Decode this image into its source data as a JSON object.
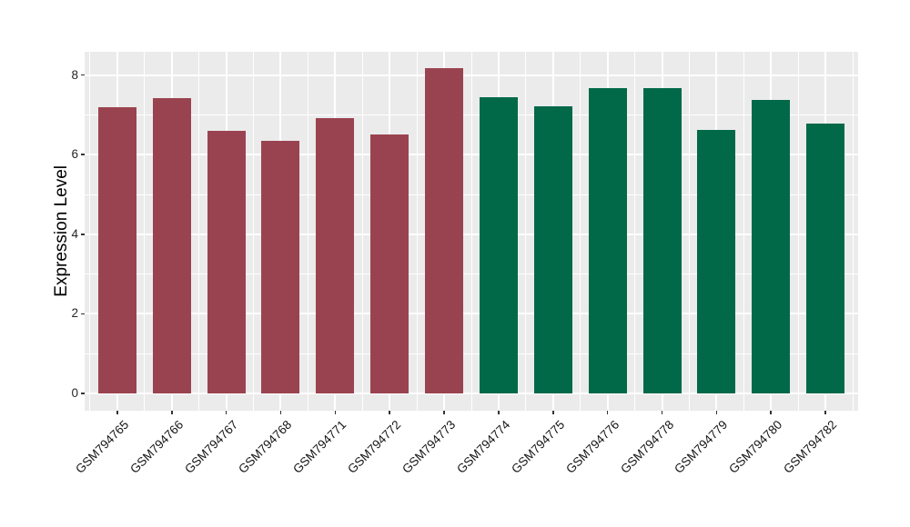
{
  "chart_data": {
    "type": "bar",
    "title": "",
    "xlabel": "",
    "ylabel": "Expression Level",
    "categories": [
      "GSM794765",
      "GSM794766",
      "GSM794767",
      "GSM794768",
      "GSM794771",
      "GSM794772",
      "GSM794773",
      "GSM794774",
      "GSM794775",
      "GSM794776",
      "GSM794778",
      "GSM794779",
      "GSM794780",
      "GSM794782"
    ],
    "values": [
      7.19,
      7.42,
      6.6,
      6.35,
      6.92,
      6.51,
      8.17,
      7.44,
      7.21,
      7.66,
      7.68,
      6.61,
      7.37,
      6.78
    ],
    "bar_colors": [
      "#9A4350",
      "#9A4350",
      "#9A4350",
      "#9A4350",
      "#9A4350",
      "#9A4350",
      "#9A4350",
      "#016948",
      "#016948",
      "#016948",
      "#016948",
      "#016948",
      "#016948",
      "#016948"
    ],
    "group_colors": {
      "maroon_group": "#9A4350",
      "green_group": "#016948"
    },
    "yticks": [
      0,
      2,
      4,
      6,
      8
    ],
    "ylim": [
      -0.41,
      8.58
    ],
    "grid": "major and minor, white on gray panel",
    "legend": "none",
    "panel_bg": "#EBEBEB",
    "grid_color": "#FFFFFF",
    "x_tick_rotation": 45
  }
}
